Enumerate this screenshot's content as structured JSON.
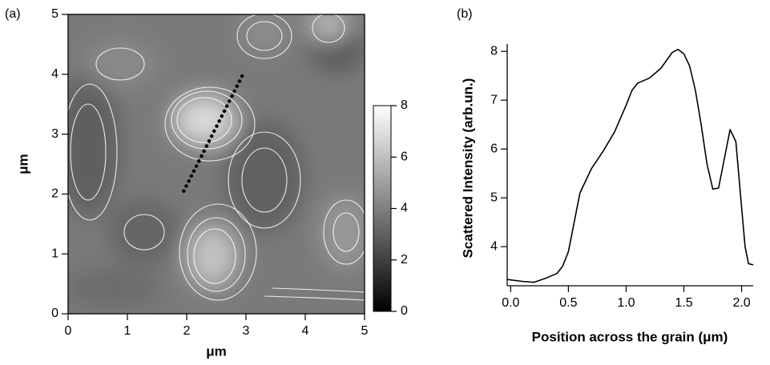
{
  "chart_data": [
    {
      "type": "image",
      "label": "(a)",
      "xlabel": "μm",
      "ylabel": "μm",
      "xlim": [
        0,
        5
      ],
      "ylim": [
        0,
        5
      ],
      "xticks": [
        0,
        1,
        2,
        3,
        4,
        5
      ],
      "yticks": [
        0,
        1,
        2,
        3,
        4,
        5
      ],
      "colorbar": {
        "lim": [
          0,
          8
        ],
        "ticks": [
          0,
          2,
          4,
          6,
          8
        ]
      },
      "profile_line": {
        "x": [
          1.95,
          2.95
        ],
        "y": [
          2.05,
          4.0
        ],
        "color": "#000000"
      }
    },
    {
      "type": "line",
      "label": "(b)",
      "xlabel": "Position across the grain  (μm)",
      "ylabel": "Scattered Intensity  (arb.un.)",
      "xlim": [
        -0.03,
        2.1
      ],
      "ylim": [
        3.2,
        8.15
      ],
      "xticks": [
        {
          "value": 0,
          "label": "0.0"
        },
        {
          "value": 0.5,
          "label": "0.5"
        },
        {
          "value": 1,
          "label": "1.0"
        },
        {
          "value": 1.5,
          "label": "1.5"
        },
        {
          "value": 2,
          "label": "2.0"
        }
      ],
      "yticks": [
        4,
        5,
        6,
        7,
        8
      ],
      "color": "#000000",
      "x": [
        -0.03,
        0.0,
        0.1,
        0.2,
        0.3,
        0.4,
        0.45,
        0.5,
        0.55,
        0.6,
        0.7,
        0.8,
        0.9,
        1.0,
        1.05,
        1.1,
        1.2,
        1.3,
        1.4,
        1.45,
        1.5,
        1.55,
        1.6,
        1.65,
        1.7,
        1.75,
        1.8,
        1.85,
        1.9,
        1.95,
        2.0,
        2.03,
        2.06,
        2.1
      ],
      "values": [
        3.33,
        3.32,
        3.29,
        3.27,
        3.35,
        3.45,
        3.6,
        3.9,
        4.5,
        5.1,
        5.6,
        5.95,
        6.35,
        6.9,
        7.2,
        7.35,
        7.45,
        7.65,
        7.98,
        8.04,
        7.95,
        7.7,
        7.2,
        6.5,
        5.7,
        5.18,
        5.2,
        5.8,
        6.4,
        6.15,
        4.8,
        4.0,
        3.65,
        3.63
      ]
    }
  ]
}
